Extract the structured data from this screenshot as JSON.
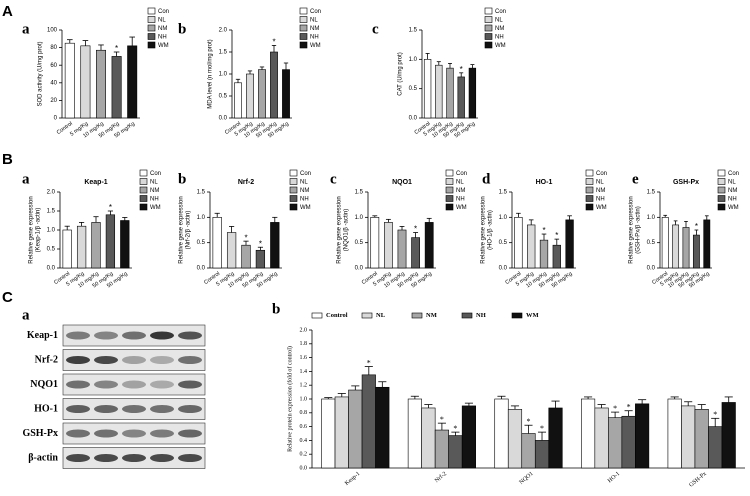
{
  "sections": [
    "A",
    "B",
    "C"
  ],
  "chart_data": [
    {
      "type": "bar",
      "panel": "a",
      "ylabel": [
        "SOD activity (U/mg prot)"
      ],
      "categories": [
        "Control",
        "5 mg/Kg",
        "10 mg/Kg",
        "50 mg/Kg",
        "50 mg/Kg"
      ],
      "values": [
        85,
        82,
        77,
        70,
        82
      ],
      "errors": [
        4,
        6,
        6,
        5,
        10
      ],
      "significant": [
        false,
        false,
        false,
        true,
        false
      ],
      "significance_label": "*",
      "colors": [
        "#ffffff",
        "#d9d9d9",
        "#a6a6a6",
        "#595959",
        "#111111"
      ],
      "legend": [
        "Con",
        "NL",
        "NM",
        "NH",
        "WM"
      ],
      "ylim": [
        0,
        100
      ],
      "yticks": [
        0,
        20,
        40,
        60,
        80,
        100
      ]
    },
    {
      "type": "bar",
      "panel": "b",
      "ylabel": [
        "MDA level (n mol/mg prot)"
      ],
      "categories": [
        "Control",
        "5 mg/Kg",
        "10 mg/Kg",
        "50 mg/Kg",
        "50 mg/Kg"
      ],
      "values": [
        0.8,
        1.0,
        1.1,
        1.5,
        1.1
      ],
      "errors": [
        0.08,
        0.07,
        0.06,
        0.15,
        0.15
      ],
      "significant": [
        false,
        false,
        false,
        true,
        false
      ],
      "significance_label": "*",
      "colors": [
        "#ffffff",
        "#d9d9d9",
        "#a6a6a6",
        "#595959",
        "#111111"
      ],
      "legend": [
        "Con",
        "NL",
        "NM",
        "NH",
        "WM"
      ],
      "ylim": [
        0,
        2
      ],
      "yticks": [
        {
          "value": 0,
          "label": "0.0"
        },
        {
          "value": 0.5,
          "label": "0.5"
        },
        {
          "value": 1,
          "label": "1.0"
        },
        {
          "value": 1.5,
          "label": "1.5"
        },
        {
          "value": 2,
          "label": "2.0"
        }
      ]
    },
    {
      "type": "bar",
      "panel": "c",
      "ylabel": [
        "CAT (U/mg prot)"
      ],
      "categories": [
        "Control",
        "5 mg/Kg",
        "10 mg/Kg",
        "50 mg/Kg",
        "50 mg/Kg"
      ],
      "values": [
        1.0,
        0.9,
        0.85,
        0.7,
        0.85
      ],
      "errors": [
        0.1,
        0.06,
        0.08,
        0.07,
        0.06
      ],
      "significant": [
        false,
        false,
        false,
        true,
        false
      ],
      "significance_label": "*",
      "colors": [
        "#ffffff",
        "#d9d9d9",
        "#a6a6a6",
        "#595959",
        "#111111"
      ],
      "legend": [
        "Con",
        "NL",
        "NM",
        "NH",
        "WM"
      ],
      "ylim": [
        0,
        1.5
      ],
      "yticks": [
        {
          "value": 0,
          "label": "0.0"
        },
        {
          "value": 0.5,
          "label": "0.5"
        },
        {
          "value": 1,
          "label": "1.0"
        },
        {
          "value": 1.5,
          "label": "1.5"
        }
      ]
    },
    {
      "type": "bar",
      "panel": "a",
      "title": "Keap-1",
      "ylabel": [
        "Relative gene expression",
        "(Keap-1/β -actin)"
      ],
      "categories": [
        "Control",
        "5 mg/Kg",
        "10 mg/Kg",
        "50 mg/Kg",
        "50 mg/Kg"
      ],
      "values": [
        1.0,
        1.1,
        1.2,
        1.4,
        1.25
      ],
      "errors": [
        0.1,
        0.1,
        0.15,
        0.1,
        0.08
      ],
      "significant": [
        false,
        false,
        false,
        true,
        false
      ],
      "significance_label": "*",
      "colors": [
        "#ffffff",
        "#d9d9d9",
        "#a6a6a6",
        "#595959",
        "#111111"
      ],
      "legend": [
        "Con",
        "NL",
        "NM",
        "NH",
        "WM"
      ],
      "ylim": [
        0,
        2
      ],
      "yticks": [
        {
          "value": 0,
          "label": "0.0"
        },
        {
          "value": 0.5,
          "label": "0.5"
        },
        {
          "value": 1,
          "label": "1.0"
        },
        {
          "value": 1.5,
          "label": "1.5"
        },
        {
          "value": 2,
          "label": "2.0"
        }
      ]
    },
    {
      "type": "bar",
      "panel": "b",
      "title": "Nrf-2",
      "ylabel": [
        "Relative gene expression",
        "(Nrf-2/β -actin)"
      ],
      "categories": [
        "Control",
        "5 mg/Kg",
        "10 mg/Kg",
        "50 mg/Kg",
        "50 mg/Kg"
      ],
      "values": [
        1.0,
        0.7,
        0.45,
        0.35,
        0.9
      ],
      "errors": [
        0.08,
        0.12,
        0.08,
        0.06,
        0.1
      ],
      "significant": [
        false,
        false,
        true,
        true,
        false
      ],
      "significance_label": "*",
      "colors": [
        "#ffffff",
        "#d9d9d9",
        "#a6a6a6",
        "#595959",
        "#111111"
      ],
      "legend": [
        "Con",
        "NL",
        "NM",
        "NH",
        "WM"
      ],
      "ylim": [
        0,
        1.5
      ],
      "yticks": [
        {
          "value": 0,
          "label": "0.0"
        },
        {
          "value": 0.5,
          "label": "0.5"
        },
        {
          "value": 1,
          "label": "1.0"
        },
        {
          "value": 1.5,
          "label": "1.5"
        }
      ]
    },
    {
      "type": "bar",
      "panel": "c",
      "title": "NQO1",
      "ylabel": [
        "Relative gene expression",
        "(NQO1/β -actin)"
      ],
      "categories": [
        "Control",
        "5 mg/Kg",
        "10 mg/Kg",
        "50 mg/Kg",
        "50 mg/Kg"
      ],
      "values": [
        1.0,
        0.9,
        0.75,
        0.6,
        0.9
      ],
      "errors": [
        0.03,
        0.06,
        0.07,
        0.1,
        0.08
      ],
      "significant": [
        false,
        false,
        false,
        true,
        false
      ],
      "significance_label": "*",
      "colors": [
        "#ffffff",
        "#d9d9d9",
        "#a6a6a6",
        "#595959",
        "#111111"
      ],
      "legend": [
        "Con",
        "NL",
        "NM",
        "NH",
        "WM"
      ],
      "ylim": [
        0,
        1.5
      ],
      "yticks": [
        {
          "value": 0,
          "label": "0.0"
        },
        {
          "value": 0.5,
          "label": "0.5"
        },
        {
          "value": 1,
          "label": "1.0"
        },
        {
          "value": 1.5,
          "label": "1.5"
        }
      ]
    },
    {
      "type": "bar",
      "panel": "d",
      "title": "HO-1",
      "ylabel": [
        "Relative gene expression",
        "(HO-1/β -actin)"
      ],
      "categories": [
        "Control",
        "5 mg/Kg",
        "10 mg/Kg",
        "50 mg/Kg",
        "50 mg/Kg"
      ],
      "values": [
        1.0,
        0.85,
        0.55,
        0.45,
        0.95
      ],
      "errors": [
        0.08,
        0.1,
        0.12,
        0.12,
        0.08
      ],
      "significant": [
        false,
        false,
        true,
        true,
        false
      ],
      "significance_label": "*",
      "colors": [
        "#ffffff",
        "#d9d9d9",
        "#a6a6a6",
        "#595959",
        "#111111"
      ],
      "legend": [
        "Con",
        "NL",
        "NM",
        "NH",
        "WM"
      ],
      "ylim": [
        0,
        1.5
      ],
      "yticks": [
        {
          "value": 0,
          "label": "0.0"
        },
        {
          "value": 0.5,
          "label": "0.5"
        },
        {
          "value": 1,
          "label": "1.0"
        },
        {
          "value": 1.5,
          "label": "1.5"
        }
      ]
    },
    {
      "type": "bar",
      "panel": "e",
      "title": "GSH-Px",
      "ylabel": [
        "Relative gene expression",
        "(GSH-Px/β -actin)"
      ],
      "categories": [
        "Control",
        "5 mg/Kg",
        "10 mg/Kg",
        "50 mg/Kg",
        "50 mg/Kg"
      ],
      "values": [
        1.0,
        0.85,
        0.8,
        0.65,
        0.95
      ],
      "errors": [
        0.04,
        0.08,
        0.12,
        0.1,
        0.08
      ],
      "significant": [
        false,
        false,
        false,
        true,
        false
      ],
      "significance_label": "*",
      "colors": [
        "#ffffff",
        "#d9d9d9",
        "#a6a6a6",
        "#595959",
        "#111111"
      ],
      "legend": [
        "Con",
        "NL",
        "NM",
        "NH",
        "WM"
      ],
      "ylim": [
        0,
        1.5
      ],
      "yticks": [
        {
          "value": 0,
          "label": "0.0"
        },
        {
          "value": 0.5,
          "label": "0.5"
        },
        {
          "value": 1,
          "label": "1.0"
        },
        {
          "value": 1.5,
          "label": "1.5"
        }
      ]
    },
    {
      "type": "grouped_bar",
      "panel": "b",
      "ylabel": [
        "Relative protein expression (fold of control)"
      ],
      "categories": [
        "Keap-1",
        "Nrf-2",
        "NQO1",
        "HO-1",
        "GSH-Px"
      ],
      "significance_label": "*",
      "series": [
        {
          "name": "Control",
          "color": "#ffffff",
          "values": [
            1.0,
            1.0,
            1.0,
            1.0,
            1.0
          ],
          "errors": [
            0.02,
            0.04,
            0.04,
            0.03,
            0.03
          ],
          "significant": [
            false,
            false,
            false,
            false,
            false
          ]
        },
        {
          "name": "NL",
          "color": "#d9d9d9",
          "values": [
            1.03,
            0.87,
            0.85,
            0.87,
            0.9
          ],
          "errors": [
            0.05,
            0.05,
            0.05,
            0.05,
            0.06
          ],
          "significant": [
            false,
            false,
            false,
            false,
            false
          ]
        },
        {
          "name": "NM",
          "color": "#a6a6a6",
          "values": [
            1.13,
            0.55,
            0.5,
            0.73,
            0.85
          ],
          "errors": [
            0.06,
            0.1,
            0.12,
            0.08,
            0.07
          ],
          "significant": [
            false,
            true,
            true,
            true,
            false
          ]
        },
        {
          "name": "NH",
          "color": "#595959",
          "values": [
            1.35,
            0.47,
            0.4,
            0.75,
            0.6
          ],
          "errors": [
            0.12,
            0.05,
            0.12,
            0.08,
            0.12
          ],
          "significant": [
            true,
            true,
            true,
            true,
            true
          ]
        },
        {
          "name": "WM",
          "color": "#111111",
          "values": [
            1.17,
            0.9,
            0.87,
            0.93,
            0.95
          ],
          "errors": [
            0.08,
            0.04,
            0.1,
            0.06,
            0.08
          ],
          "significant": [
            false,
            false,
            false,
            false,
            false
          ]
        }
      ],
      "ylim": [
        0,
        2
      ],
      "yticks": [
        {
          "value": 0,
          "label": "0.0"
        },
        {
          "value": 0.2,
          "label": "0.2"
        },
        {
          "value": 0.4,
          "label": "0.4"
        },
        {
          "value": 0.6,
          "label": "0.6"
        },
        {
          "value": 0.8,
          "label": "0.8"
        },
        {
          "value": 1,
          "label": "1.0"
        },
        {
          "value": 1.2,
          "label": "1.2"
        },
        {
          "value": 1.4,
          "label": "1.4"
        },
        {
          "value": 1.6,
          "label": "1.6"
        },
        {
          "value": 1.8,
          "label": "1.8"
        },
        {
          "value": 2,
          "label": "2.0"
        }
      ]
    }
  ],
  "blot": {
    "panel": "a",
    "rows": [
      "Keap-1",
      "Nrf-2",
      "NQO1",
      "HO-1",
      "GSH-Px",
      "β-actin"
    ]
  }
}
